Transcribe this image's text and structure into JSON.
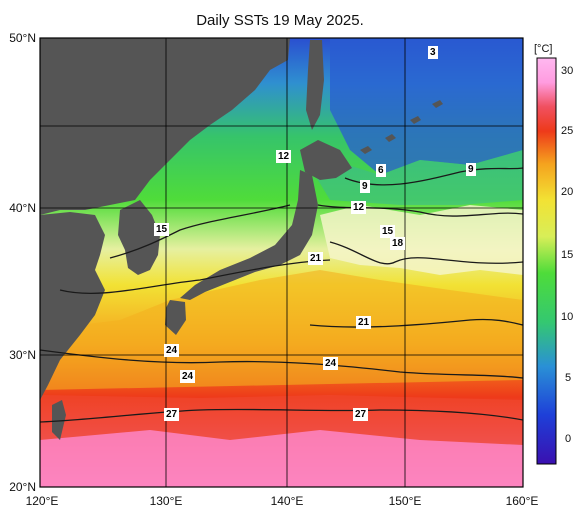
{
  "title": "Daily SSTs 19 May 2025.",
  "colorbar": {
    "unit": "[°C]",
    "min": -2,
    "max": 32,
    "ticks": [
      "30",
      "25",
      "20",
      "15",
      "10",
      "5",
      "0"
    ],
    "stops": [
      {
        "v": -2,
        "c": "#3a10b0"
      },
      {
        "v": 2,
        "c": "#1e3fd8"
      },
      {
        "v": 6,
        "c": "#2a90d6"
      },
      {
        "v": 10,
        "c": "#34c870"
      },
      {
        "v": 14,
        "c": "#4edc3a"
      },
      {
        "v": 17,
        "c": "#d8ee58"
      },
      {
        "v": 20,
        "c": "#f2e234"
      },
      {
        "v": 23,
        "c": "#f5a21e"
      },
      {
        "v": 26,
        "c": "#ee3a1a"
      },
      {
        "v": 28,
        "c": "#f05060"
      },
      {
        "v": 31,
        "c": "#ff9ce0"
      },
      {
        "v": 32,
        "c": "#ffb8f0"
      }
    ]
  },
  "axes": {
    "x_ticks": [
      "120°E",
      "130°E",
      "140°E",
      "150°E",
      "160°E"
    ],
    "y_ticks": [
      "50°N",
      "40°N",
      "30°N",
      "20°N"
    ]
  },
  "contour_labels": [
    "3",
    "6",
    "9",
    "9",
    "12",
    "12",
    "15",
    "15",
    "18",
    "21",
    "21",
    "24",
    "24",
    "24",
    "27",
    "27"
  ],
  "colors": {
    "land": "#555555",
    "grid": "#000000",
    "contour": "#1a1a1a"
  }
}
